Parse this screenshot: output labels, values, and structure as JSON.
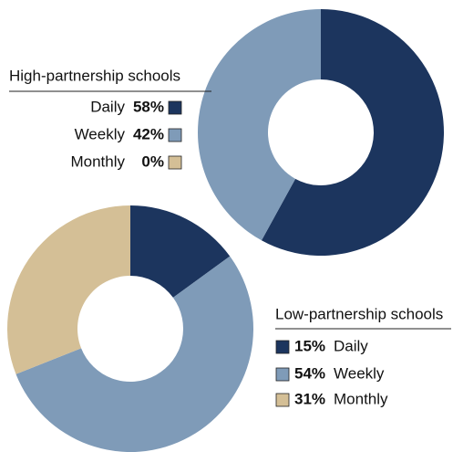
{
  "chart_data": [
    {
      "type": "pie",
      "title": "High-partnership schools",
      "categories": [
        "Daily",
        "Weekly",
        "Monthly"
      ],
      "values": [
        58,
        42,
        0
      ],
      "value_labels": [
        "58%",
        "42%",
        "0%"
      ],
      "colors": [
        "#1c355e",
        "#7f9bb8",
        "#d4bf96"
      ]
    },
    {
      "type": "pie",
      "title": "Low-partnership schools",
      "categories": [
        "Daily",
        "Weekly",
        "Monthly"
      ],
      "values": [
        15,
        54,
        31
      ],
      "value_labels": [
        "15%",
        "54%",
        "31%"
      ],
      "colors": [
        "#1c355e",
        "#7f9bb8",
        "#d4bf96"
      ]
    }
  ]
}
